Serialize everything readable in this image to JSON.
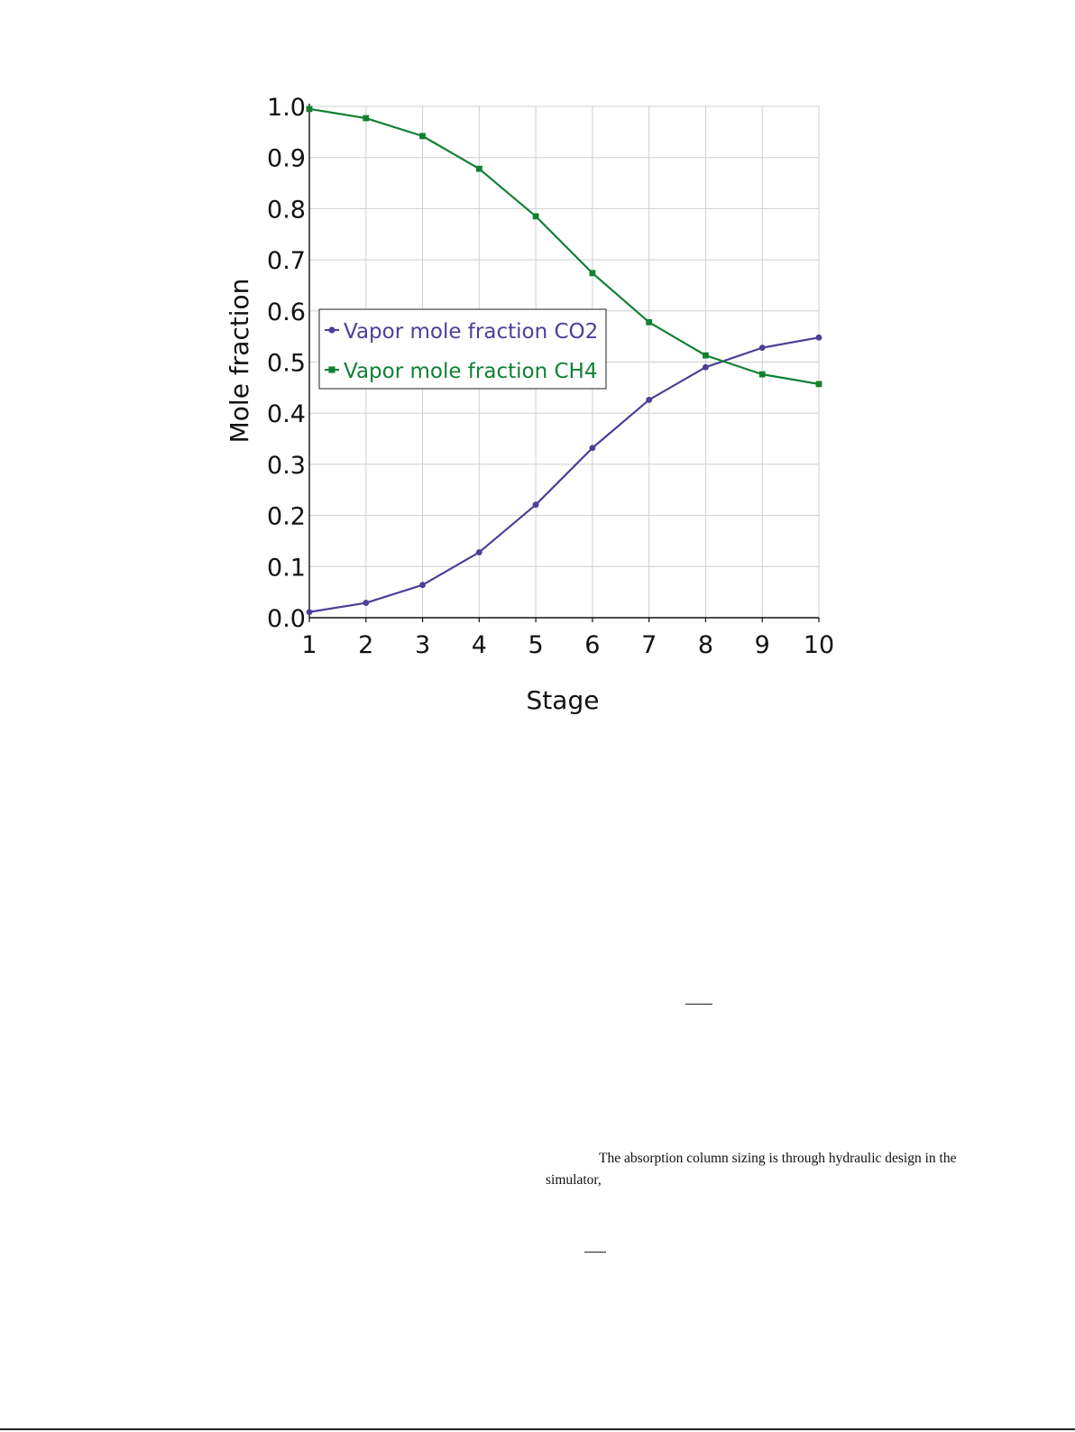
{
  "chart_data": {
    "type": "line",
    "title": "",
    "xlabel": "Stage",
    "ylabel": "Mole fraction",
    "x": [
      1,
      2,
      3,
      4,
      5,
      6,
      7,
      8,
      9,
      10
    ],
    "xlim": [
      1,
      10
    ],
    "ylim": [
      0.0,
      1.0
    ],
    "x_ticks": [
      "1",
      "2",
      "3",
      "4",
      "5",
      "6",
      "7",
      "8",
      "9",
      "10"
    ],
    "y_ticks": [
      "0.0",
      "0.1",
      "0.2",
      "0.3",
      "0.4",
      "0.5",
      "0.6",
      "0.7",
      "0.8",
      "0.9",
      "1.0"
    ],
    "grid": true,
    "legend_position": "center-left",
    "series": [
      {
        "name": "Vapor mole fraction CO2",
        "color": "#4b3f99",
        "marker": "circle",
        "values": [
          0.011,
          0.029,
          0.064,
          0.128,
          0.221,
          0.332,
          0.426,
          0.49,
          0.528,
          0.548
        ]
      },
      {
        "name": "Vapor mole fraction CH4",
        "color": "#118033",
        "marker": "square",
        "values": [
          0.995,
          0.977,
          0.942,
          0.878,
          0.785,
          0.674,
          0.578,
          0.513,
          0.476,
          0.457
        ]
      }
    ]
  },
  "page_text": {
    "paragraph_line1": "The absorption column sizing is through hydraulic design in the",
    "paragraph_line2": "simulator,"
  }
}
